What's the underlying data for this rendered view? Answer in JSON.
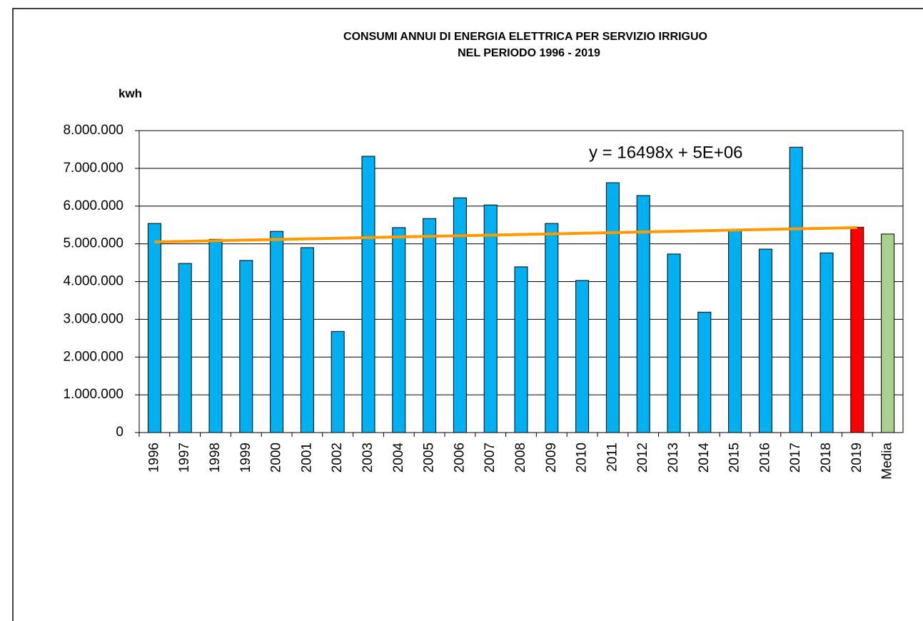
{
  "chart_data": {
    "type": "bar",
    "title": [
      "CONSUMI ANNUI DI ENERGIA ELETTRICA PER SERVIZIO IRRIGUO",
      "NEL PERIODO  1996 - 2019"
    ],
    "y_label": "kwh",
    "categories": [
      "1996",
      "1997",
      "1998",
      "1999",
      "2000",
      "2001",
      "2002",
      "2003",
      "2004",
      "2005",
      "2006",
      "2007",
      "2008",
      "2009",
      "2010",
      "2011",
      "2012",
      "2013",
      "2014",
      "2015",
      "2016",
      "2017",
      "2018",
      "2019",
      "Media"
    ],
    "values": [
      5540000,
      4480000,
      5120000,
      4560000,
      5330000,
      4900000,
      2680000,
      7320000,
      5430000,
      5670000,
      6220000,
      6030000,
      4390000,
      5540000,
      4030000,
      6620000,
      6280000,
      4730000,
      3190000,
      5350000,
      4860000,
      7560000,
      4760000,
      5440000,
      5260000
    ],
    "colors": [
      "#00b0f0",
      "#00b0f0",
      "#00b0f0",
      "#00b0f0",
      "#00b0f0",
      "#00b0f0",
      "#00b0f0",
      "#00b0f0",
      "#00b0f0",
      "#00b0f0",
      "#00b0f0",
      "#00b0f0",
      "#00b0f0",
      "#00b0f0",
      "#00b0f0",
      "#00b0f0",
      "#00b0f0",
      "#00b0f0",
      "#00b0f0",
      "#00b0f0",
      "#00b0f0",
      "#00b0f0",
      "#00b0f0",
      "#ff0000",
      "#a9d18e"
    ],
    "trendline": {
      "color": "#ff9900",
      "x": [
        "1996",
        "2019"
      ],
      "values": [
        5050000,
        5430000
      ]
    },
    "annotation": "y = 16498x + 5E+06",
    "ylim": [
      0,
      8000000
    ],
    "yticks": [
      0,
      {
        "value": 1000000,
        "label": "1.000.000"
      },
      {
        "value": 2000000,
        "label": "2.000.000"
      },
      {
        "value": 3000000,
        "label": "3.000.000"
      },
      {
        "value": 4000000,
        "label": "4.000.000"
      },
      {
        "value": 5000000,
        "label": "5.000.000"
      },
      {
        "value": 6000000,
        "label": "6.000.000"
      },
      {
        "value": 7000000,
        "label": "7.000.000"
      },
      {
        "value": 8000000,
        "label": "8.000.000"
      }
    ],
    "grid": true
  }
}
